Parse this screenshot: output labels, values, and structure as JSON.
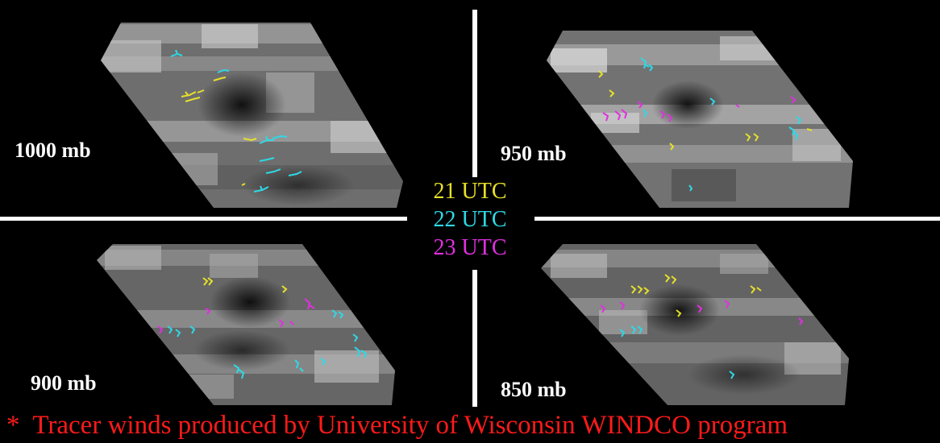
{
  "colors": {
    "utc21": "#e6e02a",
    "utc22": "#2fd8e6",
    "utc23": "#e030e0",
    "footnote": "#ff1a1a",
    "background": "#000000",
    "label": "#ffffff"
  },
  "panels": [
    {
      "level": "1000 mb"
    },
    {
      "level": "950 mb"
    },
    {
      "level": "900 mb"
    },
    {
      "level": "850 mb"
    }
  ],
  "legend": [
    {
      "label": "21 UTC",
      "color_key": "utc21"
    },
    {
      "label": "22 UTC",
      "color_key": "utc22"
    },
    {
      "label": "23 UTC",
      "color_key": "utc23"
    }
  ],
  "footnote": {
    "marker": "*",
    "text": "Tracer winds produced by University of Wisconsin WINDCO program"
  }
}
